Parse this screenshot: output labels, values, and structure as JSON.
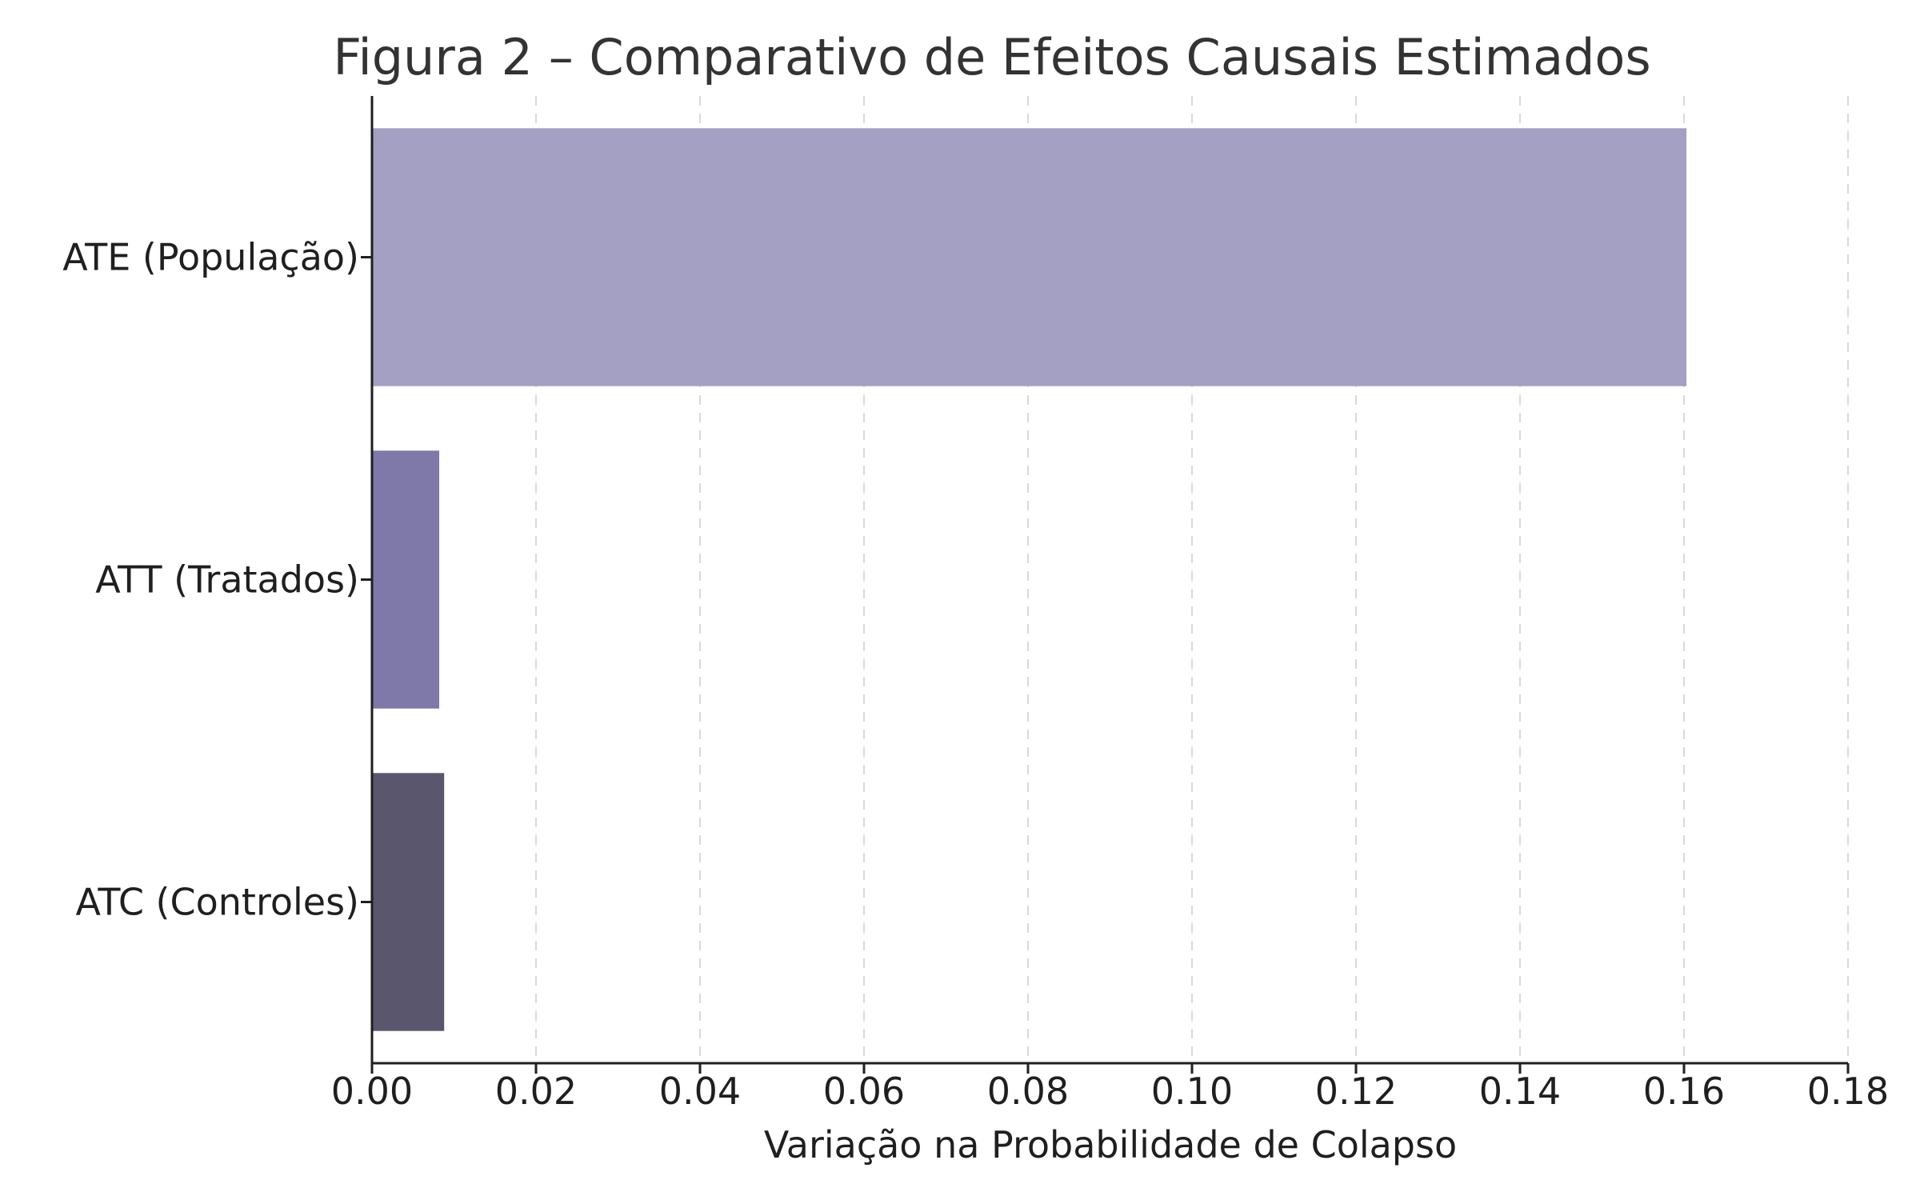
{
  "chart_data": {
    "type": "bar",
    "orientation": "horizontal",
    "title": "Figura 2 – Comparativo de Efeitos Causais Estimados",
    "xlabel": "Variação na Probabilidade de Colapso",
    "ylabel": "",
    "categories": [
      "ATE (População)",
      "ATT (Tratados)",
      "ATC (Controles)"
    ],
    "values": [
      0.1603,
      0.0082,
      0.0088
    ],
    "colors": [
      "#a4a0c3",
      "#7f79aa",
      "#5a566e"
    ],
    "xlim": [
      0,
      0.18
    ],
    "xticks": [
      "0.00",
      "0.02",
      "0.04",
      "0.06",
      "0.08",
      "0.10",
      "0.12",
      "0.14",
      "0.16",
      "0.18"
    ],
    "grid": "x, dashed",
    "legend": ""
  }
}
